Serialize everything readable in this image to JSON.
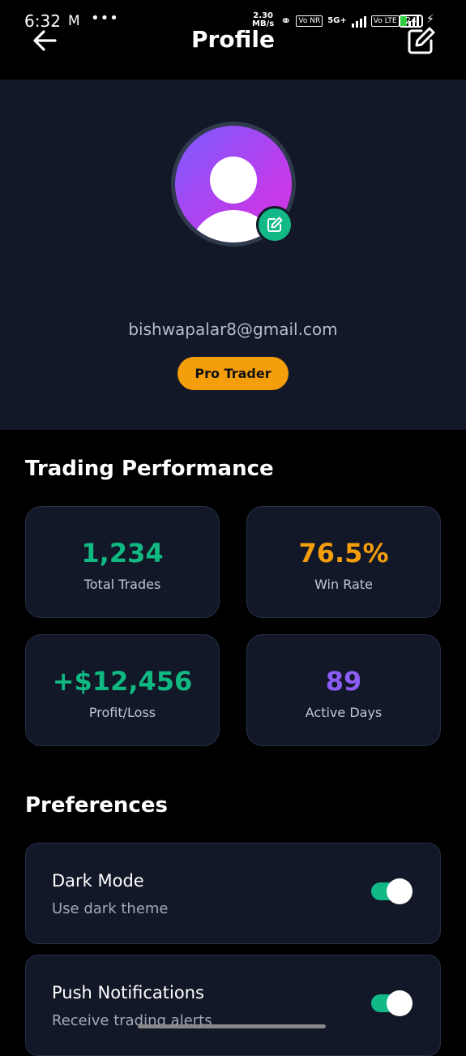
{
  "status_bar": {
    "time": "6:32",
    "mail_icon": "gmail-icon",
    "more": "•••",
    "speed_value": "2.30",
    "speed_unit": "MB/s",
    "volte1": "Vo NR",
    "network": "5G+",
    "volte2": "Vo LTE",
    "battery": "24"
  },
  "header": {
    "title": "Profile",
    "back_icon": "arrow-left-icon",
    "edit_icon": "edit-icon"
  },
  "profile": {
    "email": "bishwapalar8@gmail.com",
    "badge": "Pro Trader",
    "avatar_colors": [
      "#7a5cff",
      "#d433e0"
    ],
    "avatar_edit_icon": "edit-icon"
  },
  "performance": {
    "title": "Trading Performance",
    "stats": [
      {
        "value": "1,234",
        "label": "Total Trades",
        "color": "#10b981"
      },
      {
        "value": "76.5%",
        "label": "Win Rate",
        "color": "#f59e0b"
      },
      {
        "value": "+$12,456",
        "label": "Profit/Loss",
        "color": "#10b981"
      },
      {
        "value": "89",
        "label": "Active Days",
        "color": "#8b5cf6"
      }
    ]
  },
  "preferences": {
    "title": "Preferences",
    "items": [
      {
        "title": "Dark Mode",
        "subtitle": "Use dark theme",
        "enabled": true
      },
      {
        "title": "Push Notifications",
        "subtitle": "Receive trading alerts",
        "enabled": true
      }
    ]
  },
  "colors": {
    "accent_green": "#12b886",
    "badge_orange": "#f59e0b",
    "card_bg": "#121828"
  }
}
